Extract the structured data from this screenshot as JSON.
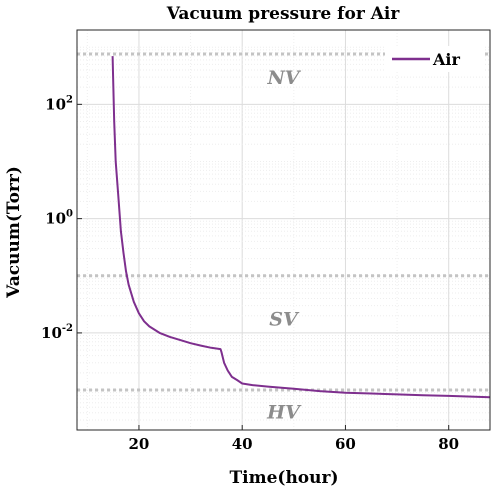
{
  "chart_data": {
    "type": "line",
    "title": "Vacuum pressure for Air",
    "xlabel": "Time(hour)",
    "ylabel": "Vacuum(Torr)",
    "xlim": [
      8,
      88
    ],
    "ylim": [
      0.0002,
      2000
    ],
    "yscale": "log",
    "grid": true,
    "legend_position": "top-right",
    "xticks": [
      20,
      40,
      60,
      80
    ],
    "yticks": [
      {
        "value": 100,
        "base": "10",
        "exp": "2"
      },
      {
        "value": 1,
        "base": "10",
        "exp": "0"
      },
      {
        "value": 0.01,
        "base": "10",
        "exp": "-2"
      }
    ],
    "series": [
      {
        "name": "Air",
        "color": "#7e2f8e",
        "points": [
          [
            14.9,
            700
          ],
          [
            15.0,
            300
          ],
          [
            15.2,
            50
          ],
          [
            15.5,
            10
          ],
          [
            16.0,
            2.5
          ],
          [
            16.5,
            0.6
          ],
          [
            17.0,
            0.25
          ],
          [
            17.5,
            0.12
          ],
          [
            18.0,
            0.07
          ],
          [
            19.0,
            0.035
          ],
          [
            20.0,
            0.022
          ],
          [
            21.0,
            0.016
          ],
          [
            22.0,
            0.013
          ],
          [
            24.0,
            0.01
          ],
          [
            26.0,
            0.0085
          ],
          [
            28.0,
            0.0075
          ],
          [
            30.0,
            0.0066
          ],
          [
            32.0,
            0.006
          ],
          [
            34.0,
            0.0055
          ],
          [
            35.8,
            0.0052
          ],
          [
            36.0,
            0.0046
          ],
          [
            36.5,
            0.003
          ],
          [
            37.2,
            0.0022
          ],
          [
            38.0,
            0.0017
          ],
          [
            39.0,
            0.0015
          ],
          [
            40.0,
            0.0013
          ],
          [
            42.0,
            0.00122
          ],
          [
            45.0,
            0.00115
          ],
          [
            50.0,
            0.00105
          ],
          [
            55.0,
            0.00096
          ],
          [
            60.0,
            0.0009
          ],
          [
            65.0,
            0.00087
          ],
          [
            70.0,
            0.00084
          ],
          [
            75.0,
            0.00081
          ],
          [
            80.0,
            0.00079
          ],
          [
            88.0,
            0.00075
          ]
        ]
      }
    ],
    "reference_lines": [
      {
        "value": 760,
        "label": "NV",
        "label_y": 300
      },
      {
        "value": 0.1,
        "label": "SV",
        "label_y": 0.018
      },
      {
        "value": 0.001,
        "label": "HV",
        "label_y": 0.00042
      }
    ]
  }
}
